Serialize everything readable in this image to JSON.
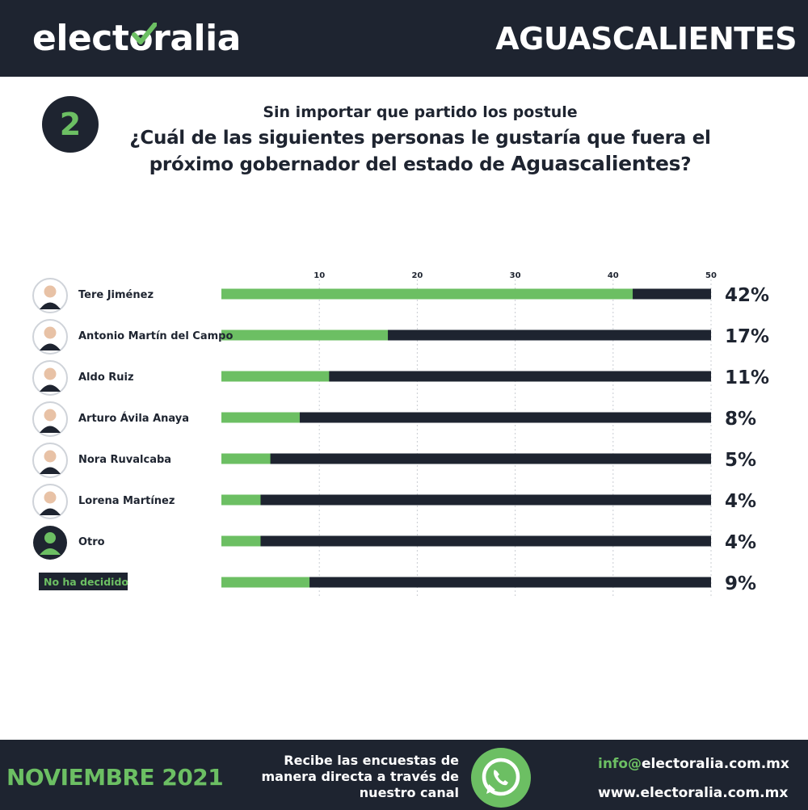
{
  "header": {
    "brand_left": "elect",
    "brand_check": "o",
    "brand_right": "ralia",
    "state": "AGUASCALIENTES"
  },
  "question": {
    "number": "2",
    "subtitle": "Sin importar que partido los postule",
    "line1": "¿Cuál de las siguientes personas le gustaría que fuera el",
    "line2_prefix": "próximo gobernador del estado de ",
    "line2_emphasis": "Aguascalientes",
    "line2_suffix": "?"
  },
  "colors": {
    "dark": "#1e2430",
    "green": "#6cbf63",
    "skin": "#e8c2a6",
    "white": "#ffffff"
  },
  "chart_data": {
    "type": "bar",
    "orientation": "horizontal",
    "categories": [
      "Tere Jiménez",
      "Antonio Martín del Campo",
      "Aldo Ruiz",
      "Arturo Ávila Anaya",
      "Nora Ruvalcaba",
      "Lorena Martínez",
      "Otro",
      "No ha decidido"
    ],
    "values": [
      42,
      17,
      11,
      8,
      5,
      4,
      4,
      9
    ],
    "value_labels": [
      "42%",
      "17%",
      "11%",
      "8%",
      "5%",
      "4%",
      "4%",
      "9%"
    ],
    "xticks": [
      10,
      20,
      30,
      40,
      50
    ],
    "xlim": [
      0,
      50
    ],
    "grid": true,
    "legend": "none",
    "avatar_icons": [
      "person-photo-icon",
      "person-photo-icon",
      "person-photo-icon",
      "person-photo-icon",
      "person-photo-icon",
      "person-photo-icon",
      "user-silhouette-icon",
      "none"
    ]
  },
  "footer": {
    "month": "NOVIEMBRE 2021",
    "recibe_lines": [
      "Recibe las encuestas de",
      "manera directa a través de",
      "nuestro canal"
    ],
    "whatsapp_icon": "whatsapp-icon",
    "email_prefix": "info@",
    "email_domain": "electoralia",
    "email_suffix": ".com.mx",
    "website": "www.electoralia.com.mx"
  }
}
